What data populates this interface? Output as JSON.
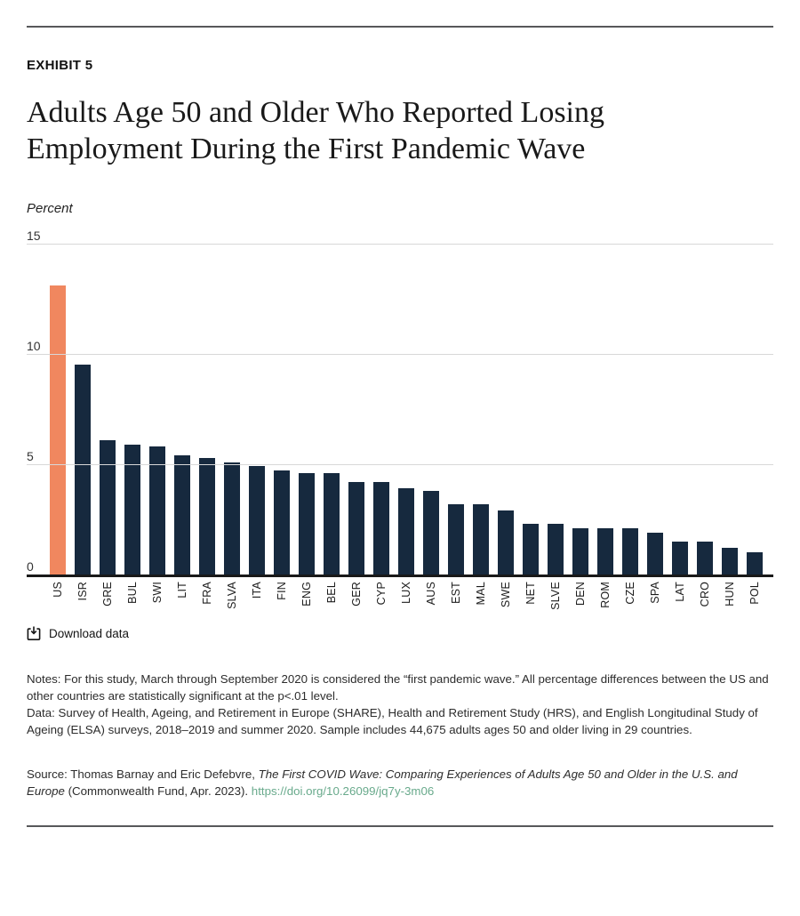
{
  "page": {
    "exhibit_label": "EXHIBIT 5",
    "title_line1": "Adults Age 50 and Older Who Reported Losing",
    "title_line2": "Employment During the First Pandemic Wave",
    "unit_label": "Percent",
    "download_label": "Download data",
    "notes_text": "Notes: For this study, March through September 2020 is considered the “first pandemic wave.” All percentage differences between the US and other countries are statistically significant at the p<.01 level.",
    "data_text": "Data: Survey of Health, Ageing, and Retirement in Europe (SHARE), Health and Retirement Study (HRS), and English Longitudinal Study of Ageing (ELSA) surveys, 2018–2019 and summer 2020. Sample includes 44,675 adults ages 50 and older living in 29 countries.",
    "source_prefix": "Source: Thomas Barnay and Eric Defebvre, ",
    "source_title_italic": "The First COVID Wave: Comparing Experiences of Adults Age 50 and Older in the U.S. and Europe",
    "source_suffix": " (Commonwealth Fund, Apr. 2023). ",
    "source_link": "https://doi.org/10.26099/jq7y-3m06"
  },
  "colors": {
    "bar_navy": "#16293e",
    "bar_highlight_orange": "#f0875f",
    "gridline": "#d8d8d8",
    "axis": "#191919",
    "link_green": "#69aa8c",
    "rule_gray": "#57585a"
  },
  "chart_data": {
    "type": "bar",
    "title": "Adults Age 50 and Older Who Reported Losing Employment During the First Pandemic Wave",
    "ylabel": "Percent",
    "xlabel": "",
    "ylim": [
      0,
      15
    ],
    "yticks": [
      0,
      5,
      10,
      15
    ],
    "grid": true,
    "legend": "none",
    "highlight_category": "US",
    "categories": [
      "US",
      "ISR",
      "GRE",
      "BUL",
      "SWI",
      "LIT",
      "FRA",
      "SLVA",
      "ITA",
      "FIN",
      "ENG",
      "BEL",
      "GER",
      "CYP",
      "LUX",
      "AUS",
      "EST",
      "MAL",
      "SWE",
      "NET",
      "SLVE",
      "DEN",
      "ROM",
      "CZE",
      "SPA",
      "LAT",
      "CRO",
      "HUN",
      "POL"
    ],
    "values": [
      13.1,
      9.5,
      6.1,
      5.9,
      5.8,
      5.4,
      5.3,
      5.1,
      4.9,
      4.7,
      4.6,
      4.6,
      4.2,
      4.2,
      3.9,
      3.8,
      3.2,
      3.2,
      2.9,
      2.3,
      2.3,
      2.1,
      2.1,
      2.1,
      1.9,
      1.5,
      1.5,
      1.2,
      1.0
    ]
  }
}
